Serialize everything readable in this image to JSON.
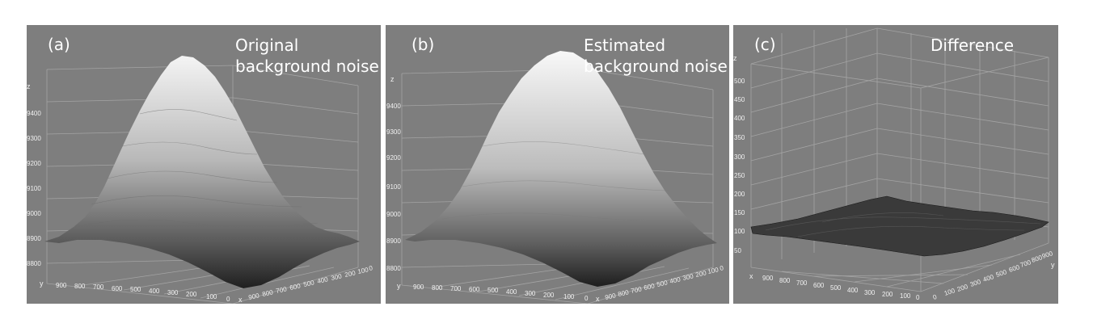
{
  "panels": [
    {
      "tag": "(a)",
      "title_line1": "Original",
      "title_line2": "background noise",
      "z_axis_label": "z",
      "z_ticks": [
        "9400",
        "9300",
        "9200",
        "9100",
        "9000",
        "8900",
        "8800"
      ],
      "x_axis_label": "x",
      "y_axis_label": "y",
      "y_ticks": [
        "900",
        "800",
        "700",
        "600",
        "500",
        "400",
        "300",
        "200",
        "100",
        "0"
      ],
      "x_ticks": [
        "900",
        "800",
        "700",
        "600",
        "500",
        "400",
        "300",
        "200",
        "100",
        "0"
      ],
      "surface": "tall-peak"
    },
    {
      "tag": "(b)",
      "title_line1": "Estimated",
      "title_line2": "background noise",
      "z_axis_label": "z",
      "z_ticks": [
        "9400",
        "9300",
        "9200",
        "9100",
        "9000",
        "8900",
        "8800"
      ],
      "x_axis_label": "x",
      "y_axis_label": "y",
      "y_ticks": [
        "900",
        "800",
        "700",
        "600",
        "500",
        "400",
        "300",
        "200",
        "100",
        "0"
      ],
      "x_ticks": [
        "900",
        "800",
        "700",
        "600",
        "500",
        "400",
        "300",
        "200",
        "100",
        "0"
      ],
      "surface": "smooth-peak"
    },
    {
      "tag": "(c)",
      "title_line1": "Difference",
      "title_line2": "",
      "z_axis_label": "z",
      "z_ticks": [
        "500",
        "450",
        "400",
        "350",
        "300",
        "250",
        "200",
        "150",
        "100",
        "50"
      ],
      "x_axis_label": "x",
      "y_axis_label": "y",
      "y_ticks": [
        "900",
        "800",
        "700",
        "600",
        "500",
        "400",
        "300",
        "200",
        "100",
        "0"
      ],
      "x_ticks": [
        "0",
        "100",
        "200",
        "300",
        "400",
        "500",
        "600",
        "700",
        "800",
        "900"
      ],
      "surface": "flat-noise"
    }
  ],
  "colors": {
    "panel_bg": "#7e7e7e",
    "grid": "#a4a4a4",
    "text": "#ffffff"
  }
}
